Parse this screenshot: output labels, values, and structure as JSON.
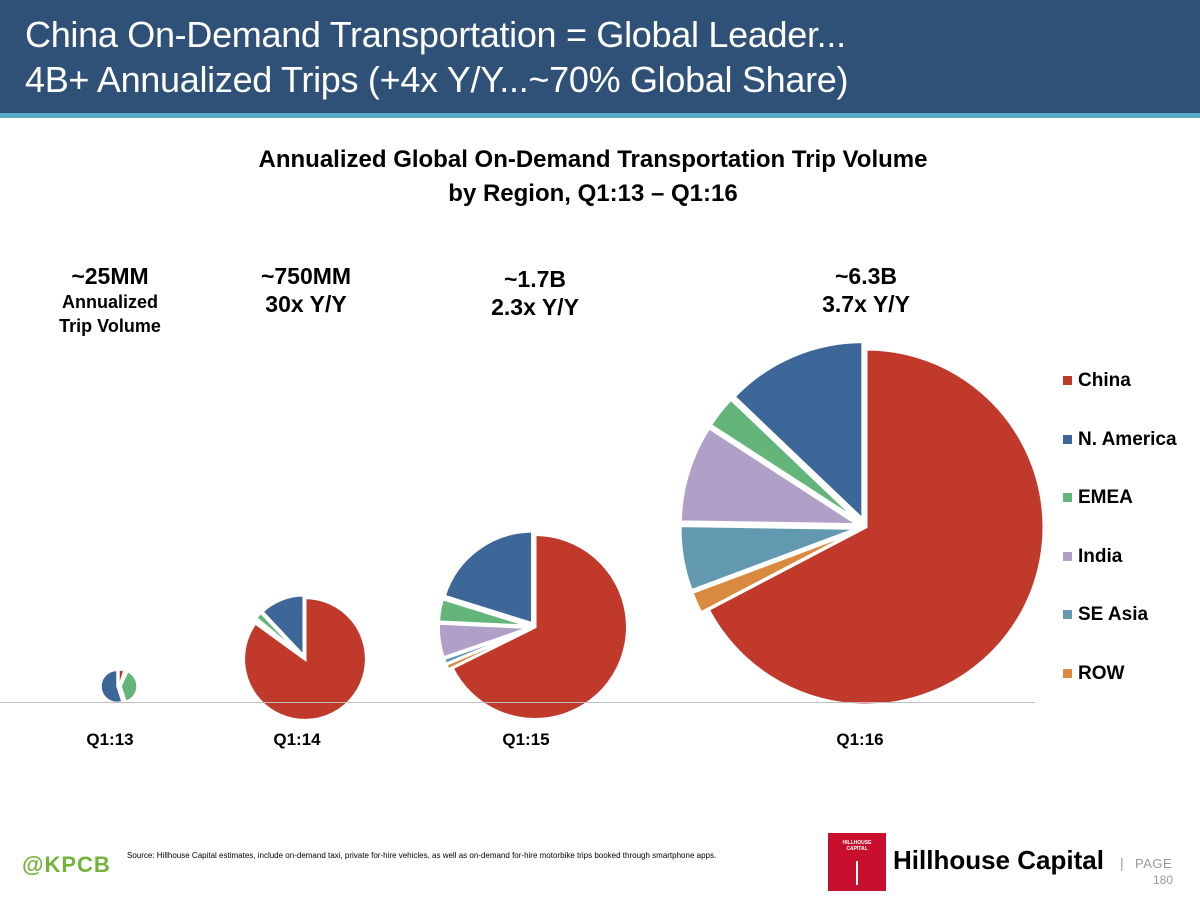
{
  "header": {
    "line1": "China On-Demand Transportation = Global Leader...",
    "line2": "4B+ Annualized Trips (+4x Y/Y...~70% Global Share)",
    "background_color": "#2f5077",
    "stripe_color": "#5aa8c8"
  },
  "chart_data": {
    "type": "pie",
    "title": "Annualized Global On-Demand Transportation Trip Volume",
    "subtitle": "by Region, Q1:13 – Q1:16",
    "legend_position": "right",
    "series_names": [
      "China",
      "N. America",
      "EMEA",
      "India",
      "SE Asia",
      "ROW"
    ],
    "colors": [
      "#c0392b",
      "#3e6799",
      "#63b57a",
      "#b0a0c8",
      "#6399b0",
      "#d98a3e"
    ],
    "pies": [
      {
        "category": "Q1:13",
        "total_label": "~25MM",
        "note_lines": [
          "Annualized",
          "Trip Volume"
        ],
        "total_trips": 25000000,
        "shares": [
          0.05,
          0.55,
          0.38,
          0.0,
          0.0,
          0.02
        ],
        "exploded_index": 0
      },
      {
        "category": "Q1:14",
        "total_label": "~750MM",
        "note_lines": [
          "30x Y/Y"
        ],
        "total_trips": 750000000,
        "shares": [
          0.85,
          0.12,
          0.02,
          0.0,
          0.005,
          0.005
        ],
        "exploded_index": 0
      },
      {
        "category": "Q1:15",
        "total_label": "~1.7B",
        "note_lines": [
          "2.3x Y/Y"
        ],
        "total_trips": 1700000000,
        "shares": [
          0.67,
          0.2,
          0.04,
          0.06,
          0.01,
          0.01
        ],
        "exploded_index": 0
      },
      {
        "category": "Q1:16",
        "total_label": "~6.3B",
        "note_lines": [
          "3.7x Y/Y"
        ],
        "total_trips": 6300000000,
        "shares": [
          0.68,
          0.13,
          0.03,
          0.09,
          0.06,
          0.02
        ],
        "exploded_index": 0
      }
    ]
  },
  "footer": {
    "kpcb_label": "@KPCB",
    "kpcb_color": "#74b33a",
    "source_note": "Source: Hillhouse Capital estimates, include on-demand taxi, private for-hire vehicles, as well as on-demand for-hire motorbike trips booked through smartphone apps.",
    "logo_text_line1": "HILLHOUSE",
    "logo_text_line2": "CAPITAL",
    "logo_color": "#c8102e",
    "brand_name": "Hillhouse Capital",
    "page_separator": "|",
    "page_word": "PAGE",
    "page_number": "180"
  }
}
